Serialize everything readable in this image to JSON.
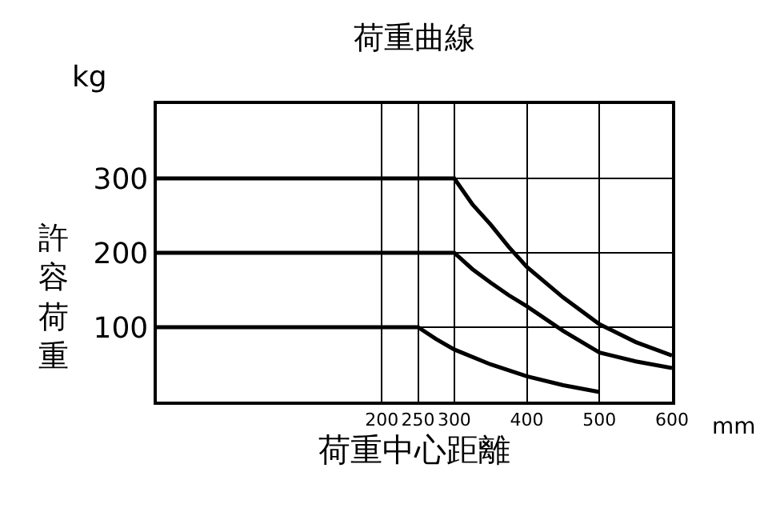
{
  "chart_data": {
    "type": "line",
    "title": "荷重曲線",
    "xlabel": "荷重中心距離",
    "ylabel": "許容荷重",
    "annotations": [
      "kg",
      "mm"
    ],
    "xlim": [
      -110,
      600
    ],
    "xticks": [
      200,
      250,
      300,
      400,
      500,
      600
    ],
    "ylim": [
      0,
      400
    ],
    "yticks": [
      100,
      200,
      300
    ],
    "grid": true,
    "legend": false,
    "marker": "none",
    "line_style": "solid",
    "series": [
      {
        "color": "#000000",
        "x": [
          -110,
          300,
          325,
          350,
          375,
          400,
          450,
          500,
          550,
          600
        ],
        "values": [
          300,
          300,
          265,
          238,
          208,
          181,
          140,
          104,
          80,
          62
        ]
      },
      {
        "color": "#000000",
        "x": [
          -110,
          300,
          325,
          350,
          375,
          400,
          450,
          500,
          550,
          600
        ],
        "values": [
          200,
          200,
          178,
          160,
          143,
          128,
          95,
          66,
          54,
          45
        ]
      },
      {
        "color": "#000000",
        "x": [
          -110,
          250,
          275,
          300,
          350,
          400,
          450,
          500
        ],
        "values": [
          100,
          100,
          84,
          70,
          50,
          34,
          22,
          13
        ]
      }
    ]
  }
}
